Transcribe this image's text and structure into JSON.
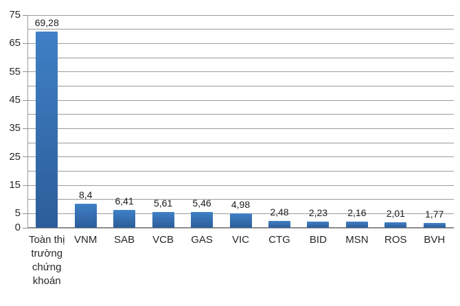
{
  "chart_data": {
    "type": "bar",
    "title": "",
    "xlabel": "",
    "ylabel": "",
    "categories": [
      "Toàn thị trường chứng khoán",
      "VNM",
      "SAB",
      "VCB",
      "GAS",
      "VIC",
      "CTG",
      "BID",
      "MSN",
      "ROS",
      "BVH"
    ],
    "values": [
      69.28,
      8.4,
      6.41,
      5.61,
      5.46,
      4.98,
      2.48,
      2.23,
      2.16,
      2.01,
      1.77
    ],
    "value_labels": [
      "69,28",
      "8,4",
      "6,41",
      "5,61",
      "5,46",
      "4,98",
      "2,48",
      "2,23",
      "2,16",
      "2,01",
      "1,77"
    ],
    "ylim": [
      0,
      75
    ],
    "yticks": [
      0,
      5,
      15,
      25,
      35,
      45,
      55,
      65,
      75
    ],
    "grid_step": 5,
    "grid": true,
    "legend": "none",
    "decimal_separator": ",",
    "colors": {
      "bar_top": "#3f80c6",
      "bar_bottom": "#2c5d99",
      "gridline": "#9a9a9a",
      "axis_text": "#262626"
    }
  }
}
